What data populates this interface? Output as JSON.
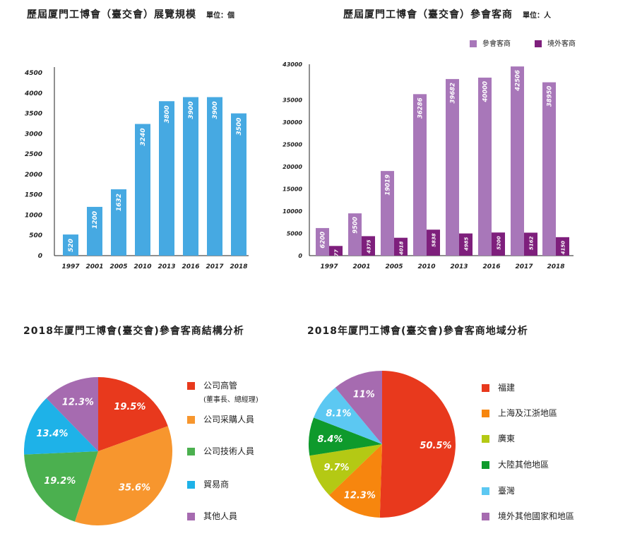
{
  "charts": {
    "c1": {
      "title": "歷屆厦門工博會（臺交會）展覽規模",
      "unit": "單位：個"
    },
    "c2": {
      "title": "歷屆厦門工博會（臺交會）參會客商",
      "unit": "單位：人"
    },
    "c3": {
      "title": "2018年厦門工博會(臺交會)參會客商結構分析"
    },
    "c4": {
      "title": "2018年厦門工博會(臺交會)參會客商地域分析"
    }
  },
  "legend3": [
    {
      "label": "公司高管",
      "sub": "(董事長、總經理)",
      "color": "#e8391d"
    },
    {
      "label": "公司采購人員",
      "color": "#f7962e"
    },
    {
      "label": "公司技術人員",
      "color": "#4bb04f"
    },
    {
      "label": "貿易商",
      "color": "#1eb2e8"
    },
    {
      "label": "其他人員",
      "color": "#a66bb0"
    }
  ],
  "legend4": [
    {
      "label": "福建",
      "color": "#e8391d"
    },
    {
      "label": "上海及江浙地區",
      "color": "#f7860e"
    },
    {
      "label": "廣東",
      "color": "#b4c914"
    },
    {
      "label": "大陸其他地區",
      "color": "#0e9a2c"
    },
    {
      "label": "臺灣",
      "color": "#5cc8f2"
    },
    {
      "label": "境外其他國家和地區",
      "color": "#a66bb0"
    }
  ],
  "chart_data": [
    {
      "type": "bar",
      "title": "歷屆厦門工博會（臺交會）展覽規模",
      "categories": [
        "1997",
        "2001",
        "2005",
        "2010",
        "2013",
        "2016",
        "2017",
        "2018"
      ],
      "values": [
        520,
        1200,
        1632,
        3240,
        3800,
        3900,
        3900,
        3500
      ],
      "yticks": [
        0,
        500,
        1000,
        1500,
        2000,
        2500,
        3000,
        3500,
        4000,
        4500
      ],
      "ylim": [
        0,
        4500
      ],
      "color": "#46a9e2"
    },
    {
      "type": "bar",
      "title": "歷屆厦門工博會（臺交會）參會客商",
      "categories": [
        "1997",
        "2001",
        "2005",
        "2010",
        "2013",
        "2016",
        "2017",
        "2018"
      ],
      "series": [
        {
          "name": "參會客商",
          "values": [
            6200,
            9500,
            19019,
            36286,
            39682,
            40000,
            42506,
            38950
          ],
          "color": "#a877b9"
        },
        {
          "name": "境外客商",
          "values": [
            2177,
            4375,
            4018,
            5838,
            4985,
            5200,
            5162,
            4150
          ],
          "color": "#7e1f7c"
        }
      ],
      "yticks": [
        0,
        5000,
        10000,
        15000,
        20000,
        25000,
        30000,
        35000,
        43000
      ],
      "ylim": [
        0,
        43000
      ]
    },
    {
      "type": "pie",
      "title": "2018年厦門工博會(臺交會)參會客商結構分析",
      "labels": [
        "公司高管",
        "公司采購人員",
        "公司技術人員",
        "貿易商",
        "其他人員"
      ],
      "values": [
        19.5,
        35.6,
        19.2,
        13.4,
        12.3
      ],
      "display": [
        "19.5%",
        "35.6%",
        "19.2%",
        "13.4%",
        "12.3%"
      ],
      "colors": [
        "#e8391d",
        "#f7962e",
        "#4bb04f",
        "#1eb2e8",
        "#a66bb0"
      ]
    },
    {
      "type": "pie",
      "title": "2018年厦門工博會(臺交會)參會客商地域分析",
      "labels": [
        "福建",
        "上海及江浙地區",
        "廣東",
        "大陸其他地區",
        "臺灣",
        "境外其他國家和地區"
      ],
      "values": [
        50.5,
        12.3,
        9.7,
        8.4,
        8.1,
        11
      ],
      "display": [
        "50.5%",
        "12.3%",
        "9.7%",
        "8.4%",
        "8.1%",
        "11%"
      ],
      "colors": [
        "#e8391d",
        "#f7860e",
        "#b4c914",
        "#0e9a2c",
        "#5cc8f2",
        "#a66bb0"
      ]
    }
  ]
}
